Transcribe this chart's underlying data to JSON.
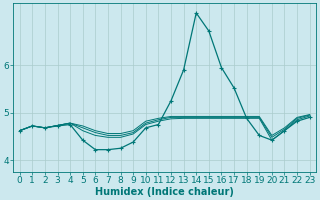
{
  "xlabel": "Humidex (Indice chaleur)",
  "bg_color": "#cce8ee",
  "grid_color": "#aacccc",
  "line_color": "#007777",
  "xlim": [
    -0.5,
    23.5
  ],
  "ylim": [
    3.75,
    7.3
  ],
  "yticks": [
    4,
    5,
    6
  ],
  "xticks": [
    0,
    1,
    2,
    3,
    4,
    5,
    6,
    7,
    8,
    9,
    10,
    11,
    12,
    13,
    14,
    15,
    16,
    17,
    18,
    19,
    20,
    21,
    22,
    23
  ],
  "lines": [
    {
      "x": [
        0,
        1,
        2,
        3,
        4,
        5,
        6,
        7,
        8,
        9,
        10,
        11,
        12,
        13,
        14,
        15,
        16,
        17,
        18,
        19,
        20,
        21,
        22,
        23
      ],
      "y": [
        4.62,
        4.72,
        4.68,
        4.72,
        4.75,
        4.42,
        4.22,
        4.22,
        4.25,
        4.38,
        4.68,
        4.75,
        5.25,
        5.9,
        7.1,
        6.72,
        5.95,
        5.52,
        4.88,
        4.52,
        4.42,
        4.62,
        4.82,
        4.9
      ],
      "marker": true
    },
    {
      "x": [
        0,
        1,
        2,
        3,
        4,
        5,
        6,
        7,
        8,
        9,
        10,
        11,
        12,
        13,
        14,
        15,
        16,
        17,
        18,
        19,
        20,
        21,
        22,
        23
      ],
      "y": [
        4.62,
        4.72,
        4.68,
        4.73,
        4.78,
        4.62,
        4.52,
        4.48,
        4.48,
        4.55,
        4.75,
        4.82,
        4.87,
        4.88,
        4.88,
        4.88,
        4.88,
        4.88,
        4.88,
        4.88,
        4.42,
        4.62,
        4.85,
        4.93
      ],
      "marker": false
    },
    {
      "x": [
        0,
        1,
        2,
        3,
        4,
        5,
        6,
        7,
        8,
        9,
        10,
        11,
        12,
        13,
        14,
        15,
        16,
        17,
        18,
        19,
        20,
        21,
        22,
        23
      ],
      "y": [
        4.62,
        4.72,
        4.68,
        4.73,
        4.78,
        4.68,
        4.58,
        4.52,
        4.52,
        4.58,
        4.78,
        4.85,
        4.9,
        4.9,
        4.9,
        4.9,
        4.9,
        4.9,
        4.9,
        4.9,
        4.48,
        4.65,
        4.88,
        4.95
      ],
      "marker": false
    },
    {
      "x": [
        0,
        1,
        2,
        3,
        4,
        5,
        6,
        7,
        8,
        9,
        10,
        11,
        12,
        13,
        14,
        15,
        16,
        17,
        18,
        19,
        20,
        21,
        22,
        23
      ],
      "y": [
        4.62,
        4.72,
        4.68,
        4.73,
        4.78,
        4.72,
        4.62,
        4.56,
        4.56,
        4.62,
        4.82,
        4.88,
        4.92,
        4.92,
        4.92,
        4.92,
        4.92,
        4.92,
        4.92,
        4.92,
        4.52,
        4.68,
        4.9,
        4.96
      ],
      "marker": false
    }
  ],
  "font_size_label": 7,
  "font_size_tick": 6.5
}
